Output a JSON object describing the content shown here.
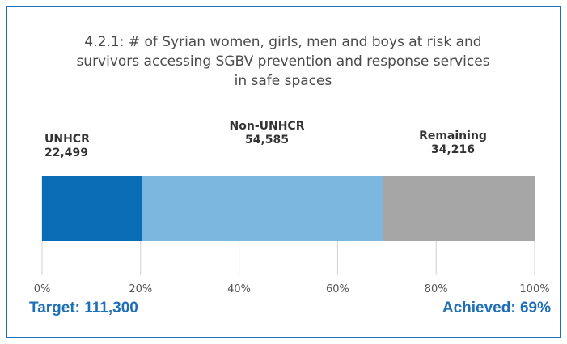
{
  "chart_data": {
    "type": "bar",
    "orientation": "horizontal-stacked",
    "title": "4.2.1: # of Syrian women, girls, men and boys at risk and survivors accessing SGBV prevention and response services in safe spaces",
    "title_lines": [
      "4.2.1: # of Syrian women, girls, men and boys at risk and",
      "survivors accessing SGBV prevention and response services",
      "in safe spaces"
    ],
    "unit": "%",
    "xlim": [
      0,
      100
    ],
    "ticks": [
      "0%",
      "20%",
      "40%",
      "60%",
      "80%",
      "100%"
    ],
    "grid": true,
    "series": [
      {
        "name": "UNHCR",
        "value_label": "22,499",
        "value": 22499,
        "percent": 20.2,
        "color": "#0b6cb6"
      },
      {
        "name": "Non-UNHCR",
        "value_label": "54,585",
        "value": 54585,
        "percent": 49.0,
        "color": "#7bb7de"
      },
      {
        "name": "Remaining",
        "value_label": "34,216",
        "value": 34216,
        "percent": 30.8,
        "color": "#a6a6a6"
      }
    ]
  },
  "footer": {
    "target": "Target: 111,300",
    "achieved": "Achieved: 69%"
  },
  "colors": {
    "border": "#1f6fb6",
    "footer_text": "#1f6fb6",
    "grid": "#d0d0d0"
  }
}
